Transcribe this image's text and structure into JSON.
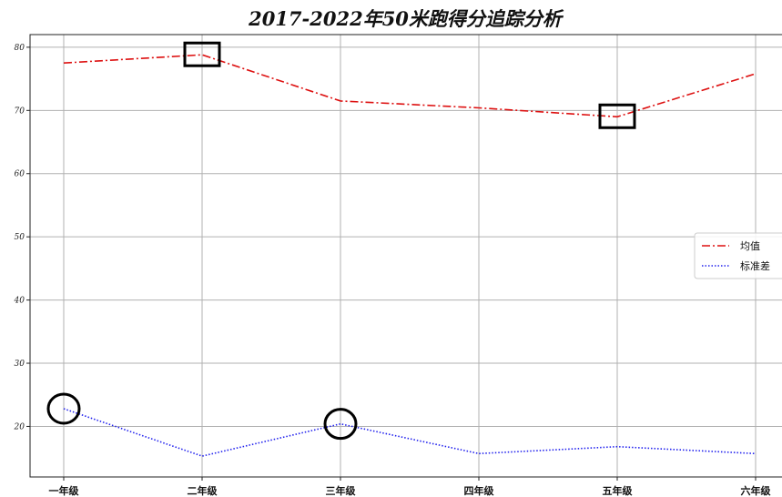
{
  "chart_data": {
    "type": "line",
    "title": "2017-2022年50米跑得分追踪分析",
    "xlabel": "",
    "ylabel": "",
    "categories": [
      "一年级",
      "二年级",
      "三年级",
      "四年级",
      "五年级",
      "六年级"
    ],
    "ylim": [
      12,
      82
    ],
    "yticks": [
      20,
      30,
      40,
      50,
      60,
      70,
      80
    ],
    "grid": true,
    "legend": "right",
    "series": [
      {
        "name": "均值",
        "values": [
          77.5,
          78.8,
          71.5,
          70.4,
          69.0,
          75.8
        ],
        "color": "#dd1111",
        "style": "dashdot"
      },
      {
        "name": "标准差",
        "values": [
          22.8,
          15.3,
          20.4,
          15.7,
          16.8,
          15.7
        ],
        "color": "#2222ee",
        "style": "dotted"
      }
    ],
    "annotations": [
      {
        "shape": "square",
        "series": 0,
        "index": 1
      },
      {
        "shape": "square",
        "series": 0,
        "index": 4
      },
      {
        "shape": "circle",
        "series": 1,
        "index": 0
      },
      {
        "shape": "circle",
        "series": 1,
        "index": 2
      }
    ]
  }
}
